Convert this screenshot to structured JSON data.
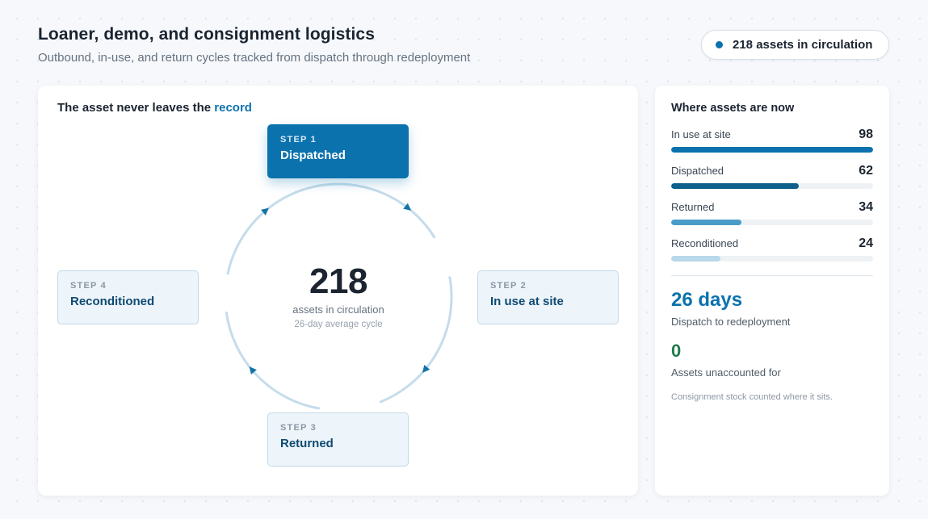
{
  "header": {
    "title": "Loaner, demo, and consignment logistics",
    "subtitle": "Outbound, in-use, and return cycles tracked from dispatch through redeployment",
    "status_pill": "218 assets in circulation"
  },
  "cycle": {
    "heading_prefix": "The asset never leaves the ",
    "heading_accent": "record",
    "center_value": "218",
    "center_label": "assets in circulation",
    "center_sub": "26-day average cycle",
    "steps": [
      {
        "num": "STEP 1",
        "label": "Dispatched",
        "active": true
      },
      {
        "num": "STEP 2",
        "label": "In use at site",
        "active": false
      },
      {
        "num": "STEP 3",
        "label": "Returned",
        "active": false
      },
      {
        "num": "STEP 4",
        "label": "Reconditioned",
        "active": false
      }
    ]
  },
  "side": {
    "heading": "Where assets are now",
    "max_value": 98,
    "rows": [
      {
        "label": "In use at site",
        "value": 98,
        "color": "#0b72ad"
      },
      {
        "label": "Dispatched",
        "value": 62,
        "color": "#0d5f8c"
      },
      {
        "label": "Returned",
        "value": 34,
        "color": "#4a9cc8"
      },
      {
        "label": "Reconditioned",
        "value": 24,
        "color": "#b9d8ea"
      }
    ],
    "metric_1_value": "26 days",
    "metric_1_label": "Dispatch to redeployment",
    "metric_2_value": "0",
    "metric_2_label": "Assets unaccounted for",
    "footnote": "Consignment stock counted where it sits."
  },
  "colors": {
    "accent": "#0b72ad",
    "ring": "#c5dceb",
    "arrow": "#1473a8",
    "positive": "#1f7a4d"
  }
}
